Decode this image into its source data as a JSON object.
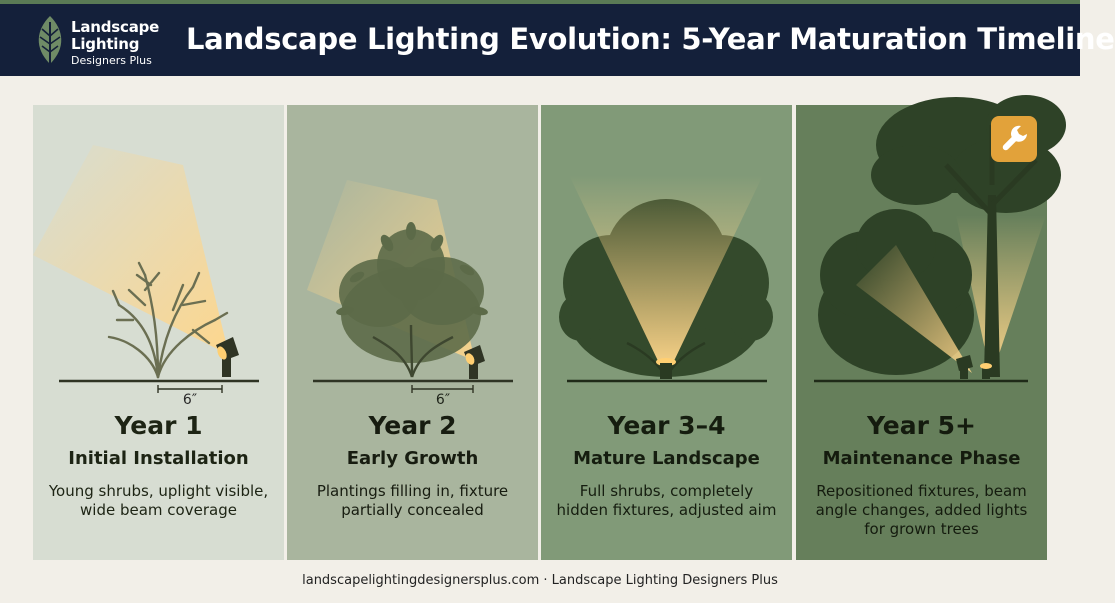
{
  "header": {
    "brand": {
      "line1": "Landscape",
      "line2": "Lighting",
      "line3": "Designers Plus"
    },
    "title": "Landscape Lighting Evolution: 5-Year Maturation Timeline",
    "colors": {
      "bar": "#14203a",
      "accent_strip": "#5a7a55"
    }
  },
  "panels": [
    {
      "year": "Year 1",
      "phase": "Initial Installation",
      "description": "Young shrubs, uplight visible, wide beam coverage",
      "dimension_label": "6″",
      "background": "#d7ddd2"
    },
    {
      "year": "Year 2",
      "phase": "Early Growth",
      "description": "Plantings filling in, fixture partially concealed",
      "dimension_label": "6″",
      "background": "#a9b59e"
    },
    {
      "year": "Year 3–4",
      "phase": "Mature Landscape",
      "description": "Full shrubs, completely hidden fixtures, adjusted aim",
      "background": "#819a78"
    },
    {
      "year": "Year 5+",
      "phase": "Maintenance Phase",
      "description": "Repositioned fixtures, beam angle changes, added lights for grown trees",
      "background": "#667f5b",
      "badge_icon": "wrench-icon"
    }
  ],
  "footer": {
    "text": "landscapelightingdesignersplus.com · Landscape Lighting Designers Plus"
  }
}
